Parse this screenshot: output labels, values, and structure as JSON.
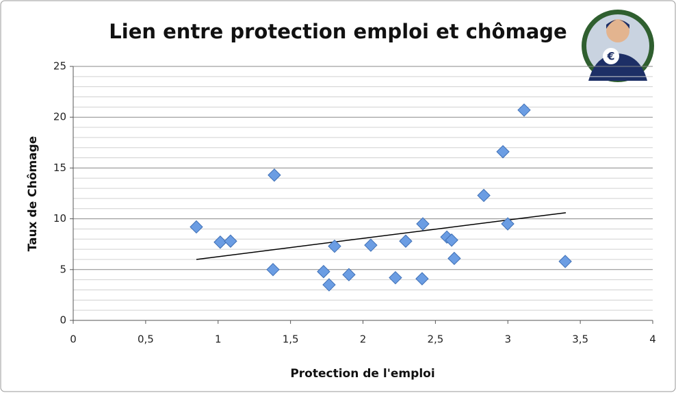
{
  "chart_data": {
    "type": "scatter",
    "title": "Lien entre protection emploi et chômage",
    "x_label": "Protection de l'emploi",
    "y_label": "Taux de Chômage",
    "x": [
      0.85,
      1.015,
      1.086,
      1.388,
      1.379,
      1.728,
      1.766,
      1.804,
      1.903,
      2.054,
      2.224,
      2.295,
      2.408,
      2.413,
      2.579,
      2.612,
      2.63,
      2.834,
      2.966,
      2.999,
      3.112,
      3.396
    ],
    "values": [
      9.2,
      7.7,
      7.8,
      14.3,
      5.0,
      4.8,
      3.5,
      7.3,
      4.5,
      7.4,
      4.2,
      7.8,
      4.1,
      9.5,
      8.2,
      7.9,
      6.1,
      12.3,
      16.6,
      9.5,
      20.7,
      5.8
    ],
    "color": "#6b9de3",
    "trendline": {
      "x": [
        0.85,
        3.4
      ],
      "y": [
        6.0,
        10.6
      ],
      "color": "#000000"
    },
    "xlim": [
      0,
      4
    ],
    "xticks": [
      0,
      {
        "value": 0.5,
        "label": "0,5"
      },
      1,
      {
        "value": 1.5,
        "label": "1,5"
      },
      2,
      {
        "value": 2.5,
        "label": "2,5"
      },
      3,
      {
        "value": 3.5,
        "label": "3,5"
      },
      4
    ],
    "ylim": [
      0,
      25
    ],
    "yticks": [
      0,
      5,
      10,
      15,
      20,
      25
    ],
    "grid": true,
    "minor_grid": true
  }
}
